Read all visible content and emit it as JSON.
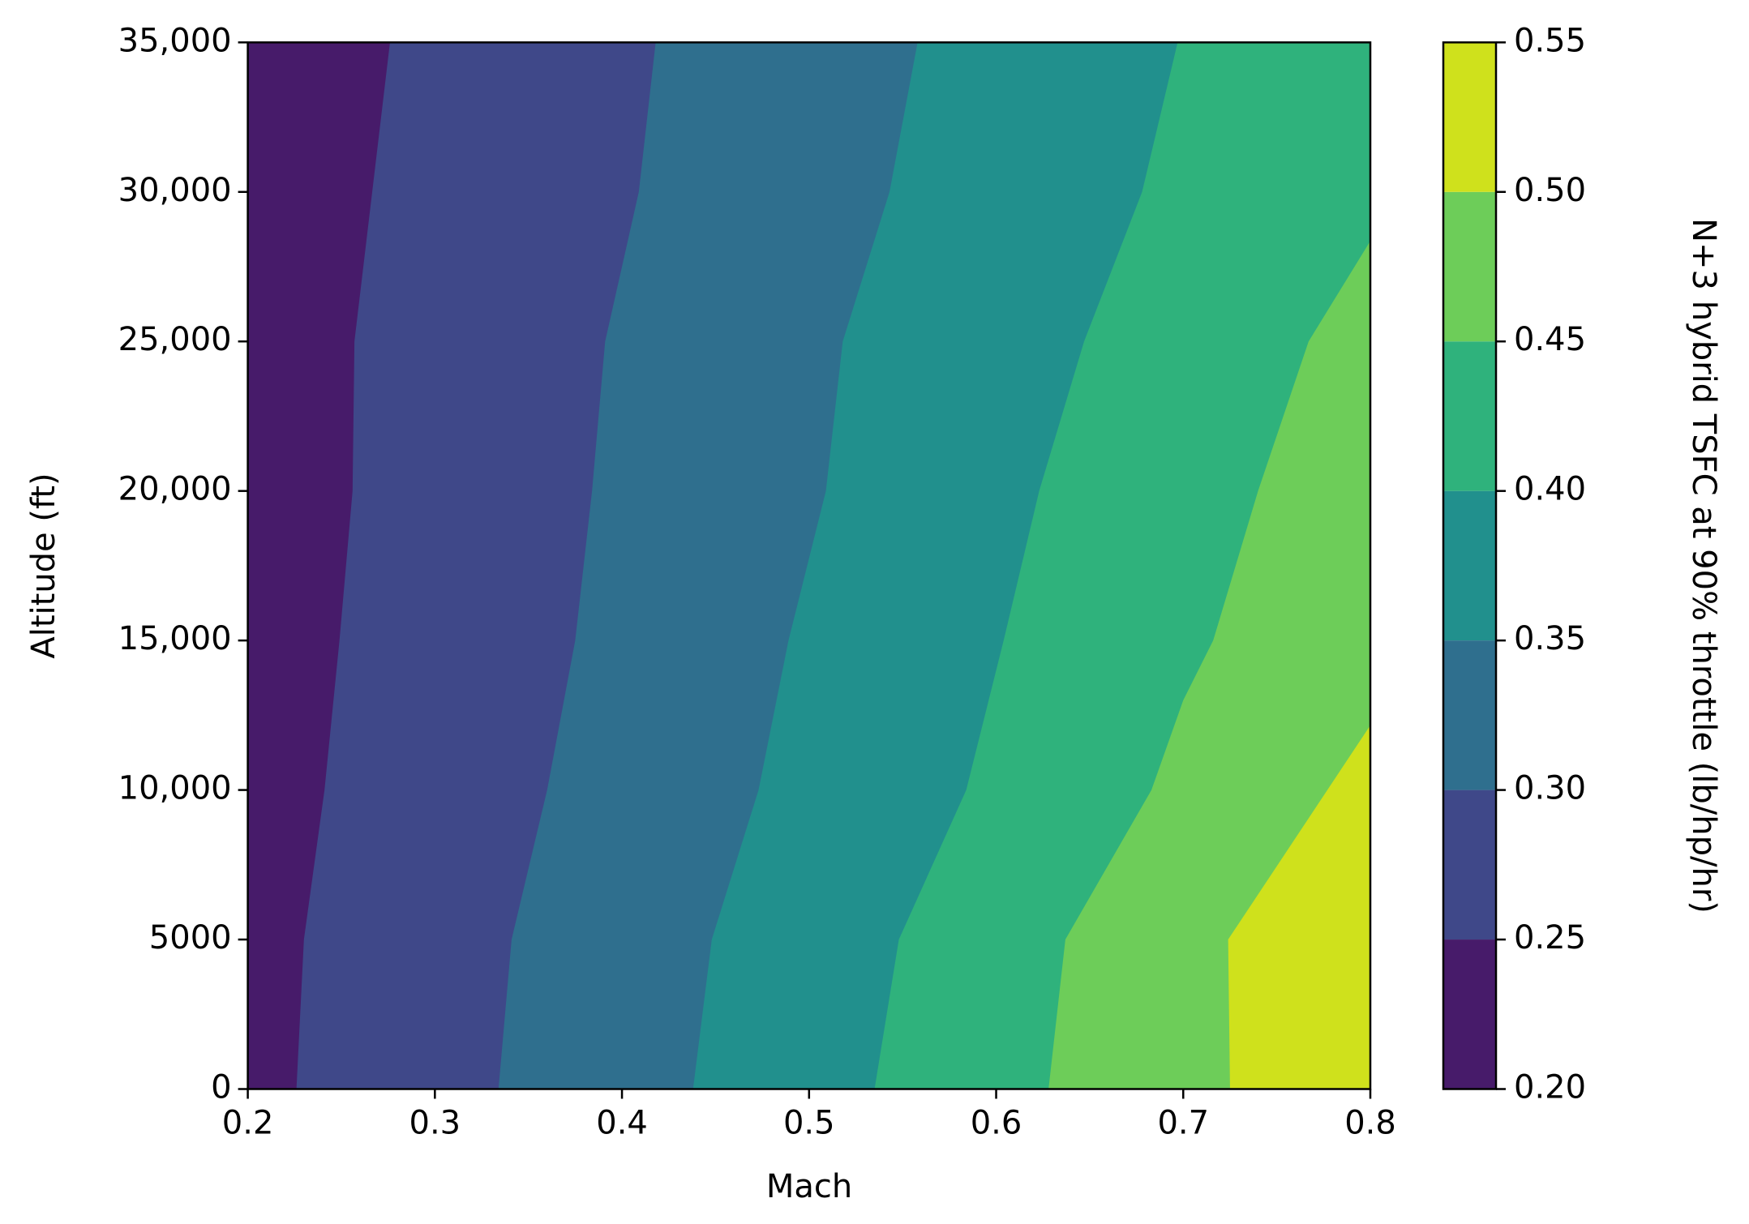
{
  "chart_data": {
    "type": "contourf",
    "x_label": "Mach",
    "y_label": "Altitude (ft)",
    "colorbar_label": "N+3 hybrid TSFC at 90% throttle (lb/hp/hr)",
    "xlim": [
      0.2,
      0.8
    ],
    "xticks": [
      0.2,
      0.3,
      0.4,
      0.5,
      0.6,
      0.7,
      0.8
    ],
    "ylim": [
      0,
      35000
    ],
    "yticks": [
      0,
      5000,
      {
        "value": 10000,
        "label": "10,000"
      },
      {
        "value": 15000,
        "label": "15,000"
      },
      {
        "value": 20000,
        "label": "20,000"
      },
      {
        "value": 25000,
        "label": "25,000"
      },
      {
        "value": 30000,
        "label": "30,000"
      },
      {
        "value": 35000,
        "label": "35,000"
      }
    ],
    "levels": [
      {
        "value": 0.2,
        "label": "0.20"
      },
      {
        "value": 0.25,
        "label": "0.25"
      },
      {
        "value": 0.3,
        "label": "0.30"
      },
      {
        "value": 0.35,
        "label": "0.35"
      },
      {
        "value": 0.4,
        "label": "0.40"
      },
      {
        "value": 0.45,
        "label": "0.45"
      },
      {
        "value": 0.5,
        "label": "0.50"
      },
      {
        "value": 0.55,
        "label": "0.55"
      }
    ],
    "colors": [
      "#471b6a",
      "#3f4889",
      "#2f6f8e",
      "#21908d",
      "#2fb27c",
      "#6dcd59",
      "#cfe11c"
    ],
    "contours": [
      {
        "x": [
          0.276,
          0.257,
          0.256,
          0.249,
          0.241,
          0.23,
          0.226
        ],
        "y": [
          35000,
          25000,
          20000,
          15000,
          10000,
          5000,
          0
        ]
      },
      {
        "x": [
          0.418,
          0.409,
          0.391,
          0.384,
          0.375,
          0.36,
          0.341,
          0.334
        ],
        "y": [
          35000,
          30000,
          25000,
          20000,
          15000,
          10000,
          5000,
          0
        ]
      },
      {
        "x": [
          0.558,
          0.543,
          0.518,
          0.509,
          0.489,
          0.473,
          0.448,
          0.438
        ],
        "y": [
          35000,
          30000,
          25000,
          20000,
          15000,
          10000,
          5000,
          0
        ]
      },
      {
        "x": [
          0.697,
          0.678,
          0.647,
          0.623,
          0.604,
          0.584,
          0.548,
          0.535
        ],
        "y": [
          35000,
          30000,
          25000,
          20000,
          15000,
          10000,
          5000,
          0
        ]
      },
      {
        "x": [
          0.8,
          0.767,
          0.74,
          0.716,
          0.7,
          0.683,
          0.637,
          0.628
        ],
        "y": [
          28360,
          25000,
          20000,
          15000,
          13000,
          10000,
          5000,
          0
        ]
      },
      {
        "x": [
          0.8,
          0.724,
          0.725
        ],
        "y": [
          12164,
          5000,
          0
        ]
      }
    ]
  }
}
